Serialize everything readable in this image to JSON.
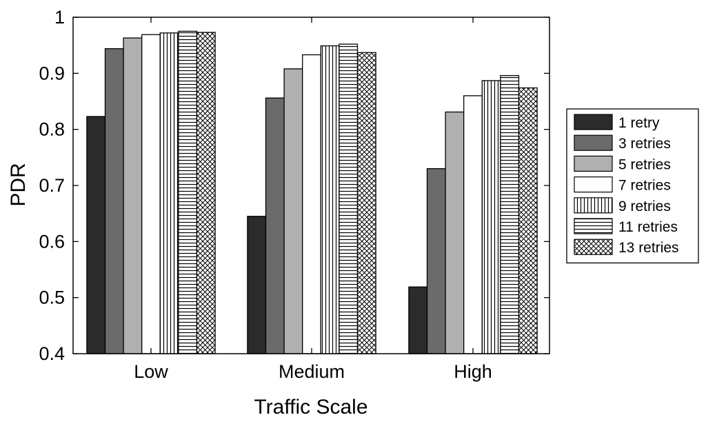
{
  "chart_data": {
    "type": "bar",
    "title": "",
    "xlabel": "Traffic Scale",
    "ylabel": "PDR",
    "ylim": [
      0.4,
      1.0
    ],
    "yticks": [
      "0.4",
      "0.5",
      "0.6",
      "0.7",
      "0.8",
      "0.9",
      "1"
    ],
    "categories": [
      "Low",
      "Medium",
      "High"
    ],
    "legend_position": "right",
    "series": [
      {
        "name": "1 retry",
        "values": [
          0.823,
          0.645,
          0.519
        ],
        "fill": "#2b2b2b",
        "pattern": "none"
      },
      {
        "name": "3 retries",
        "values": [
          0.944,
          0.856,
          0.73
        ],
        "fill": "#6b6b6b",
        "pattern": "none"
      },
      {
        "name": "5 retries",
        "values": [
          0.963,
          0.908,
          0.831
        ],
        "fill": "#b0b0b0",
        "pattern": "none"
      },
      {
        "name": "7 retries",
        "values": [
          0.969,
          0.933,
          0.86
        ],
        "fill": "#ffffff",
        "pattern": "none"
      },
      {
        "name": "9 retries",
        "values": [
          0.972,
          0.949,
          0.887
        ],
        "fill": "#ffffff",
        "pattern": "vertical"
      },
      {
        "name": "11 retries",
        "values": [
          0.975,
          0.952,
          0.896
        ],
        "fill": "#ffffff",
        "pattern": "horizontal"
      },
      {
        "name": "13 retries",
        "values": [
          0.973,
          0.937,
          0.874
        ],
        "fill": "#ffffff",
        "pattern": "crosshatch"
      }
    ]
  }
}
